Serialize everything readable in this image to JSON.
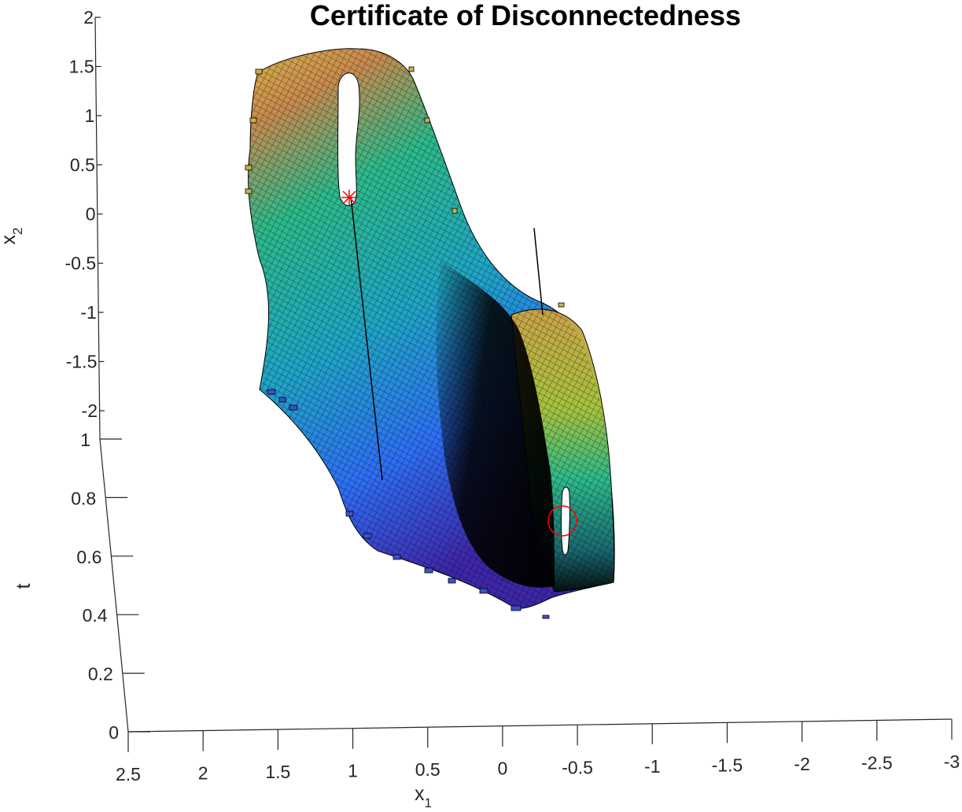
{
  "chart_data": {
    "type": "surface3d",
    "title": "Certificate of Disconnectedness",
    "xlabel": "x",
    "xlabel_sub": "1",
    "ylabel": "x",
    "ylabel_sub": "2",
    "zlabel": "t",
    "x_ticks": [
      "2.5",
      "2",
      "1.5",
      "1",
      "0.5",
      "0",
      "-0.5",
      "-1",
      "-1.5",
      "-2",
      "-2.5",
      "-3"
    ],
    "y_ticks": [
      "2",
      "1.5",
      "1",
      "0.5",
      "0",
      "-0.5",
      "-1",
      "-1.5",
      "-2"
    ],
    "z_ticks": [
      "1",
      "0.8",
      "0.6",
      "0.4",
      "0.2",
      "0"
    ],
    "xlim": [
      -3,
      2.5
    ],
    "ylim": [
      -2,
      2
    ],
    "zlim": [
      0,
      1
    ],
    "colormap": [
      "#3e26a8",
      "#2e6ff5",
      "#1fa5c5",
      "#2db98a",
      "#96c53e",
      "#e6c035",
      "#f9d825"
    ],
    "markers": [
      {
        "shape": "star",
        "color": "#ff0000",
        "x": 1.0,
        "y": 0.05
      },
      {
        "shape": "circle",
        "color": "#ff0000",
        "x": -0.4,
        "y": -2.2
      }
    ],
    "grid": false
  }
}
